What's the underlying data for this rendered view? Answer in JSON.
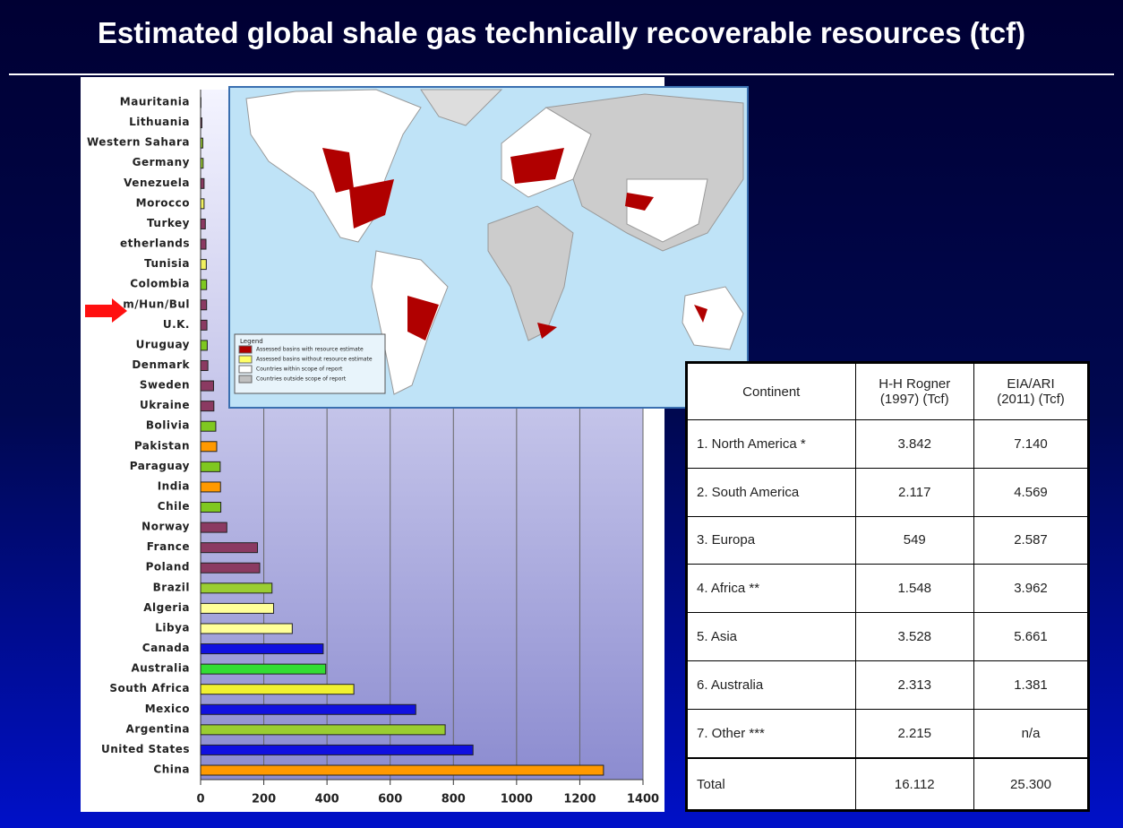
{
  "chart_data": {
    "type": "hbar",
    "title": "Estimated global shale gas technically recoverable resources (tcf)",
    "categories": [
      "Mauritania",
      "Lithuania",
      "Western Sahara",
      "Germany",
      "Venezuela",
      "Morocco",
      "Turkey",
      "etherlands",
      "Tunisia",
      "Colombia",
      "m/Hun/Bul",
      "U.K.",
      "Uruguay",
      "Denmark",
      "Sweden",
      "Ukraine",
      "Bolivia",
      "Pakistan",
      "Paraguay",
      "India",
      "Chile",
      "Norway",
      "France",
      "Poland",
      "Brazil",
      "Algeria",
      "Libya",
      "Canada",
      "Australia",
      "South Africa",
      "Mexico",
      "Argentina",
      "United States",
      "China"
    ],
    "values": [
      1,
      4,
      7,
      8,
      11,
      11,
      15,
      17,
      18,
      19,
      19,
      20,
      21,
      23,
      41,
      42,
      48,
      51,
      62,
      63,
      64,
      83,
      180,
      187,
      226,
      231,
      290,
      388,
      396,
      485,
      681,
      774,
      862,
      1275
    ],
    "colors": [
      "#8b3a62",
      "#8b3a62",
      "#9acd32",
      "#9acd32",
      "#8b3a62",
      "#f0f060",
      "#8b3a62",
      "#8b3a62",
      "#f0f060",
      "#7fc820",
      "#8b3a62",
      "#8b3a62",
      "#7fc820",
      "#8b3a62",
      "#8b3a62",
      "#8b3a62",
      "#7fc820",
      "#ff9900",
      "#7fc820",
      "#ff9900",
      "#7fc820",
      "#8b3a62",
      "#8b3a62",
      "#8b3a62",
      "#9acd32",
      "#ffff99",
      "#ffff99",
      "#1010e0",
      "#33dd33",
      "#f0f030",
      "#1010e0",
      "#9acd32",
      "#1010e0",
      "#ff9900"
    ],
    "xlim": [
      0,
      1400
    ],
    "xticks": [
      0,
      200,
      400,
      600,
      800,
      1000,
      1200,
      1400
    ],
    "grid": true
  },
  "map": {
    "legend_title": "Legend",
    "legend": [
      "Assessed basins with resource estimate",
      "Assessed basins without resource estimate",
      "Countries within scope of report",
      "Countries outside scope of report"
    ],
    "legend_colors": [
      "#b00000",
      "#ffff66",
      "#ffffff",
      "#c0c0c0"
    ]
  },
  "table": {
    "header": [
      [
        "Continent"
      ],
      [
        "H-H Rogner",
        "(1997)    (Tcf)"
      ],
      [
        "EIA/ARI",
        "(2011)    (Tcf)"
      ]
    ],
    "rows": [
      [
        "1. North America *",
        "3.842",
        "7.140"
      ],
      [
        "2. South America",
        "2.117",
        "4.569"
      ],
      [
        "3. Europa",
        "549",
        "2.587"
      ],
      [
        "4. Africa **",
        "1.548",
        "3.962"
      ],
      [
        "5. Asia",
        "3.528",
        "5.661"
      ],
      [
        "6. Australia",
        "2.313",
        "1.381"
      ],
      [
        "7. Other ***",
        "2.215",
        "n/a"
      ],
      [
        "Total",
        "16.112",
        "25.300"
      ]
    ]
  }
}
